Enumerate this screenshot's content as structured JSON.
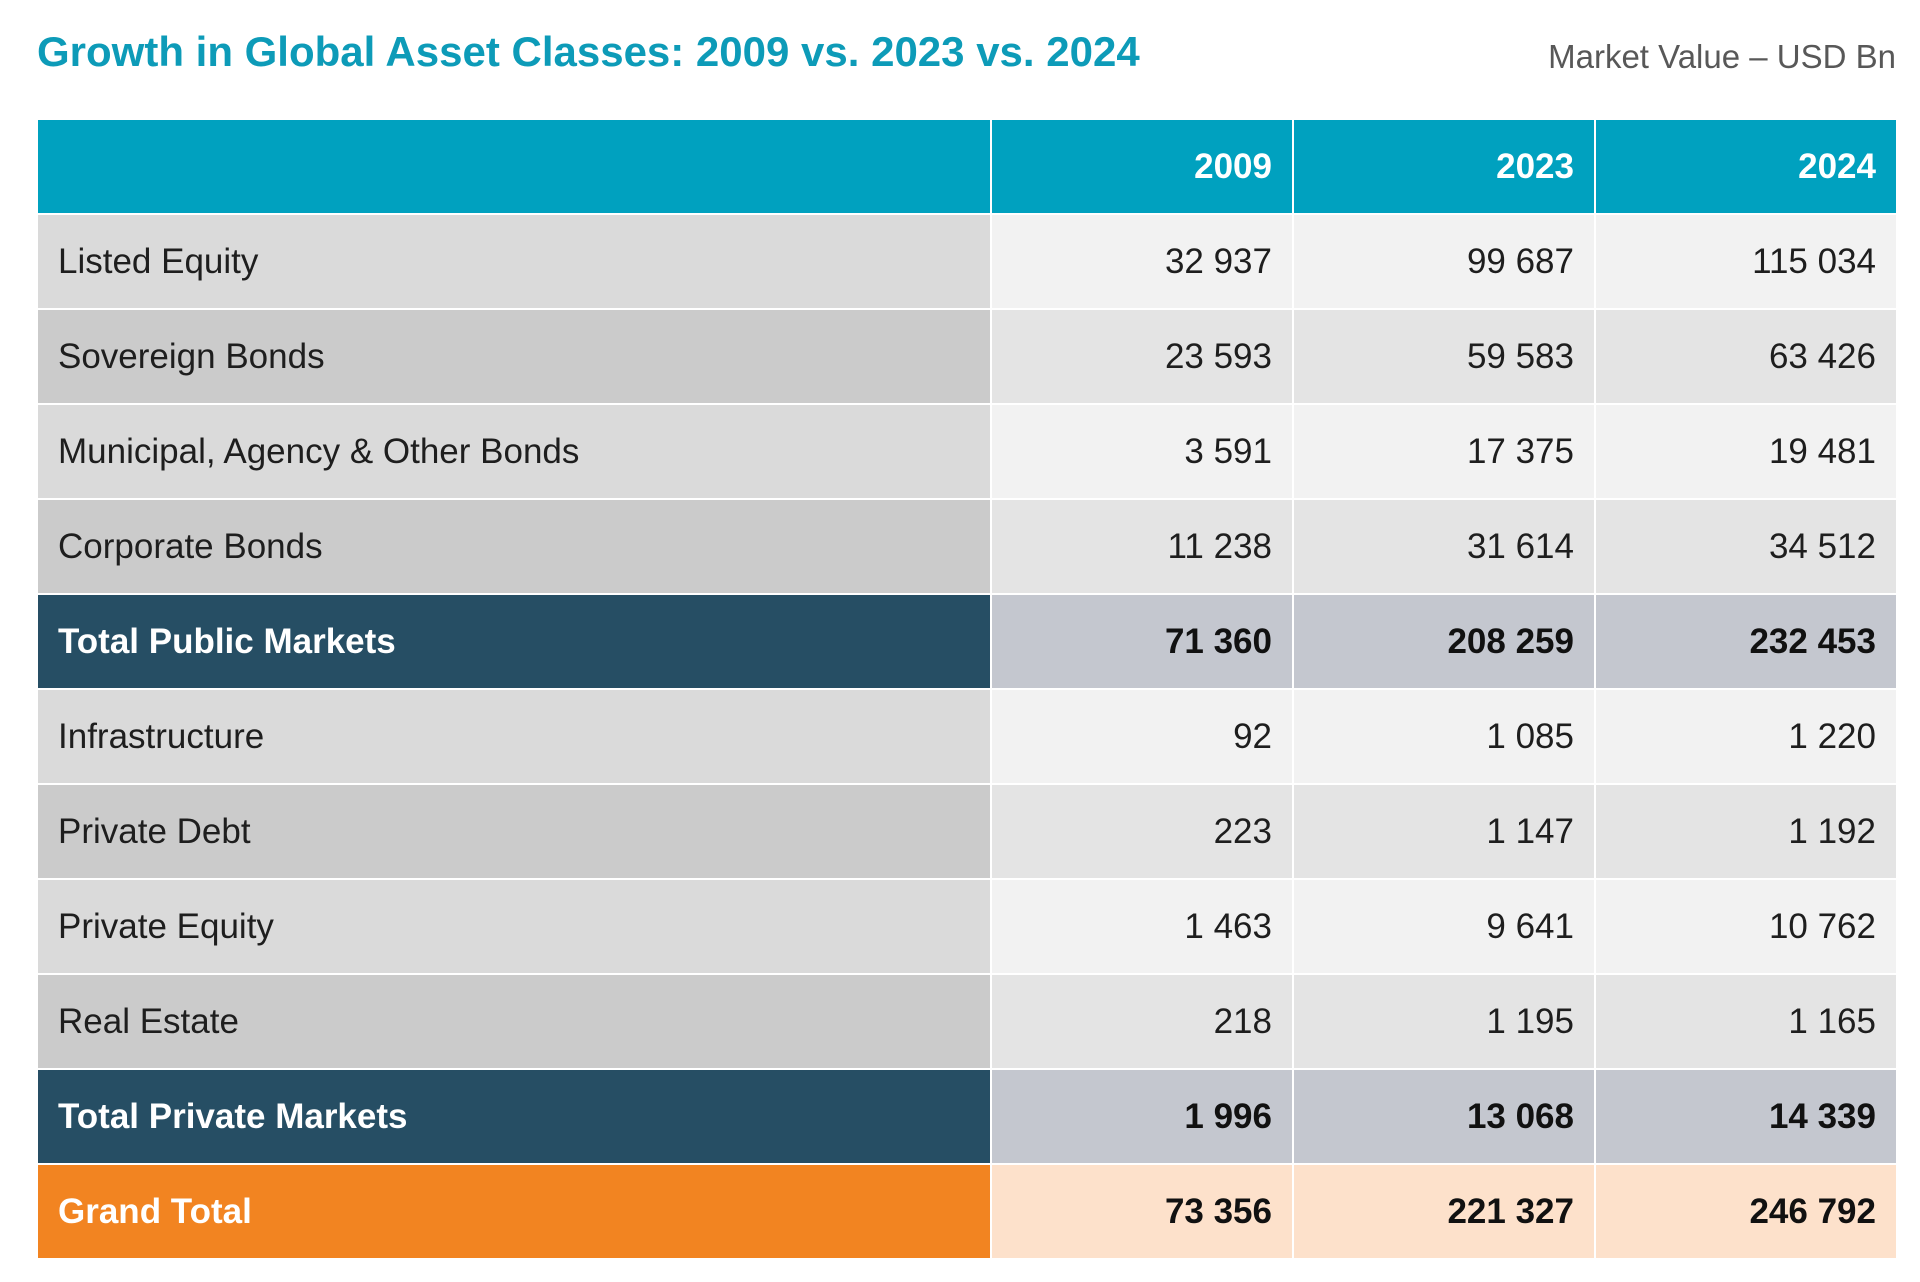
{
  "chart_data": {
    "type": "table",
    "title": "Growth in Global Asset Classes: 2009 vs. 2023 vs. 2024",
    "unit_note": "Market Value – USD Bn",
    "columns": [
      "",
      "2009",
      "2023",
      "2024"
    ],
    "rows": [
      {
        "label": "Listed Equity",
        "kind": "item",
        "values": [
          "32 937",
          "99 687",
          "115 034"
        ]
      },
      {
        "label": "Sovereign Bonds",
        "kind": "item",
        "values": [
          "23 593",
          "59 583",
          "63 426"
        ]
      },
      {
        "label": "Municipal, Agency & Other Bonds",
        "kind": "item",
        "values": [
          "3 591",
          "17 375",
          "19 481"
        ]
      },
      {
        "label": "Corporate Bonds",
        "kind": "item",
        "values": [
          "11 238",
          "31 614",
          "34 512"
        ]
      },
      {
        "label": "Total Public Markets",
        "kind": "subtotal",
        "values": [
          "71 360",
          "208 259",
          "232 453"
        ]
      },
      {
        "label": "Infrastructure",
        "kind": "item",
        "values": [
          "92",
          "1 085",
          "1 220"
        ]
      },
      {
        "label": "Private Debt",
        "kind": "item",
        "values": [
          "223",
          "1 147",
          "1 192"
        ]
      },
      {
        "label": "Private Equity",
        "kind": "item",
        "values": [
          "1 463",
          "9 641",
          "10 762"
        ]
      },
      {
        "label": "Real Estate",
        "kind": "item",
        "values": [
          "218",
          "1 195",
          "1 165"
        ]
      },
      {
        "label": "Total Private Markets",
        "kind": "subtotal",
        "values": [
          "1 996",
          "13 068",
          "14 339"
        ]
      },
      {
        "label": "Grand Total",
        "kind": "grand",
        "values": [
          "73 356",
          "221 327",
          "246 792"
        ]
      }
    ]
  },
  "colors": {
    "title": "#0d9bb8",
    "header_bg": "#00a1bf",
    "subtotal_label_bg": "#264e64",
    "subtotal_value_bg": "#c4c7cf",
    "grand_label_bg": "#f28421",
    "grand_value_bg": "#fde1cb"
  }
}
